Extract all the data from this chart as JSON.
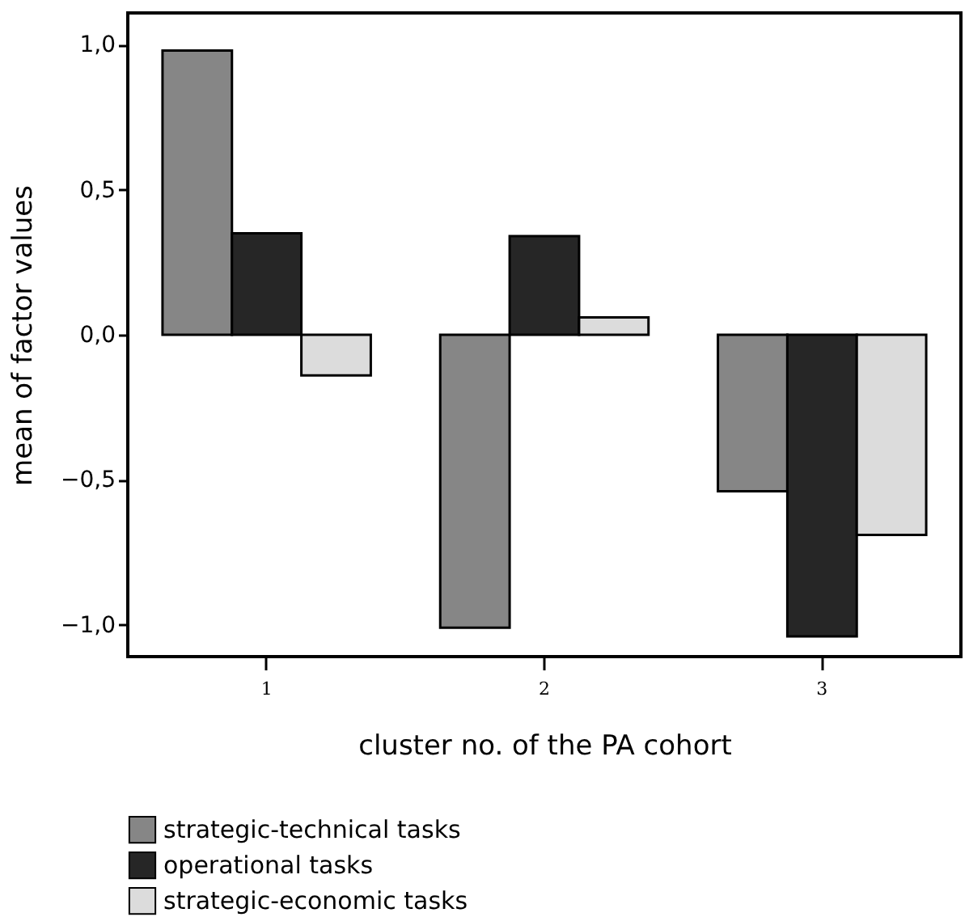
{
  "chart_data": {
    "type": "bar",
    "xlabel": "cluster no. of the PA cohort",
    "ylabel": "mean of factor values",
    "categories": [
      "1",
      "2",
      "3"
    ],
    "series": [
      {
        "name": "strategic-technical tasks",
        "color": "#868686",
        "values": [
          0.98,
          -1.01,
          -0.54
        ]
      },
      {
        "name": "operational tasks",
        "color": "#262626",
        "values": [
          0.35,
          0.34,
          -1.04
        ]
      },
      {
        "name": "strategic-economic tasks",
        "color": "#dcdcdc",
        "values": [
          -0.14,
          0.06,
          -0.69
        ]
      }
    ],
    "ylim": [
      -1.11,
      1.11
    ],
    "yticks": [
      {
        "value": -1.0,
        "label": "−1,0"
      },
      {
        "value": -0.5,
        "label": "−0,5"
      },
      {
        "value": 0.0,
        "label": "0,0"
      },
      {
        "value": 0.5,
        "label": "0,5"
      },
      {
        "value": 1.0,
        "label": "1,0"
      }
    ],
    "grid": false,
    "legend": "bottom"
  }
}
